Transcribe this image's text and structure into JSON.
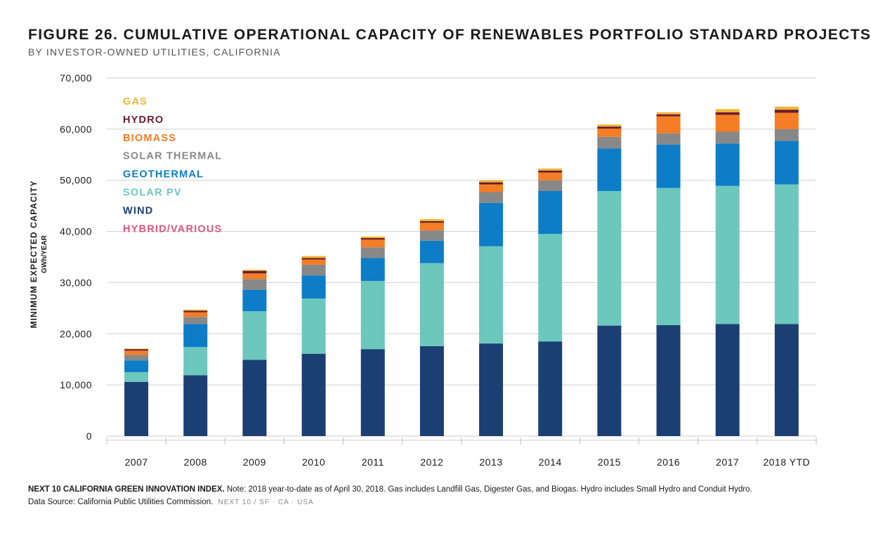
{
  "header": {
    "title": "FIGURE 26. CUMULATIVE OPERATIONAL CAPACITY OF RENEWABLES PORTFOLIO STANDARD PROJECTS",
    "subtitle": "BY INVESTOR-OWNED UTILITIES, CALIFORNIA"
  },
  "footer": {
    "source_org": "NEXT 10 CALIFORNIA GREEN INNOVATION INDEX.",
    "note": "Note: 2018 year-to-date as of April 30, 2018. Gas includes Landfill Gas, Digester Gas, and Biogas. Hydro includes Small Hydro and Conduit Hydro.",
    "data_source": "Data Source: California Public Utilities Commission.",
    "stamp": "NEXT 10  /  SF · CA · USA"
  },
  "chart_data": {
    "type": "bar",
    "stacked": true,
    "title": "FIGURE 26. CUMULATIVE OPERATIONAL CAPACITY OF RENEWABLES PORTFOLIO STANDARD PROJECTS",
    "subtitle": "BY INVESTOR-OWNED UTILITIES, CALIFORNIA",
    "ylabel": "MINIMUM EXPECTED CAPACITY",
    "ylabel_unit": "GWh/YEAR",
    "xlabel": "",
    "ylim": [
      0,
      70000
    ],
    "yticks": [
      0,
      10000,
      20000,
      30000,
      40000,
      50000,
      60000,
      70000
    ],
    "ytick_labels": [
      "0",
      "10,000",
      "20,000",
      "30,000",
      "40,000",
      "50,000",
      "60,000",
      "70,000"
    ],
    "grid": true,
    "legend_position": "top-left",
    "categories": [
      "2007",
      "2008",
      "2009",
      "2010",
      "2011",
      "2012",
      "2013",
      "2014",
      "2015",
      "2016",
      "2017",
      "2018 YTD"
    ],
    "series": [
      {
        "name": "WIND",
        "color": "#1b3f73",
        "values": [
          10600,
          11900,
          14900,
          16100,
          17000,
          17600,
          18100,
          18500,
          21600,
          21700,
          21900,
          21900
        ]
      },
      {
        "name": "SOLAR PV",
        "color": "#6cc7bd",
        "values": [
          1900,
          5500,
          9500,
          10800,
          13300,
          16200,
          19000,
          21000,
          26300,
          26800,
          27000,
          27300
        ]
      },
      {
        "name": "GEOTHERMAL",
        "color": "#0c7dc6",
        "values": [
          2300,
          4500,
          4200,
          4500,
          4500,
          4400,
          8500,
          8400,
          8300,
          8500,
          8300,
          8500
        ]
      },
      {
        "name": "SOLAR THERMAL",
        "color": "#888888",
        "values": [
          1100,
          1400,
          2100,
          2100,
          2100,
          2000,
          2100,
          2100,
          2300,
          2200,
          2300,
          2300
        ]
      },
      {
        "name": "BIOMASS",
        "color": "#f47d25",
        "values": [
          800,
          900,
          1100,
          1000,
          1500,
          1500,
          1500,
          1500,
          1600,
          3300,
          3300,
          3200
        ]
      },
      {
        "name": "HYDRO",
        "color": "#6b1b2c",
        "values": [
          300,
          300,
          500,
          300,
          300,
          300,
          400,
          400,
          400,
          400,
          500,
          600
        ]
      },
      {
        "name": "GAS",
        "color": "#f2b531",
        "values": [
          100,
          200,
          200,
          400,
          300,
          400,
          400,
          400,
          400,
          400,
          600,
          600
        ]
      },
      {
        "name": "HYBRID/VARIOUS",
        "color": "#e0557f",
        "values": [
          0,
          0,
          0,
          0,
          0,
          0,
          0,
          0,
          0,
          0,
          0,
          0
        ]
      }
    ],
    "legend_order": [
      "GAS",
      "HYDRO",
      "BIOMASS",
      "SOLAR THERMAL",
      "GEOTHERMAL",
      "SOLAR PV",
      "WIND",
      "HYBRID/VARIOUS"
    ]
  }
}
